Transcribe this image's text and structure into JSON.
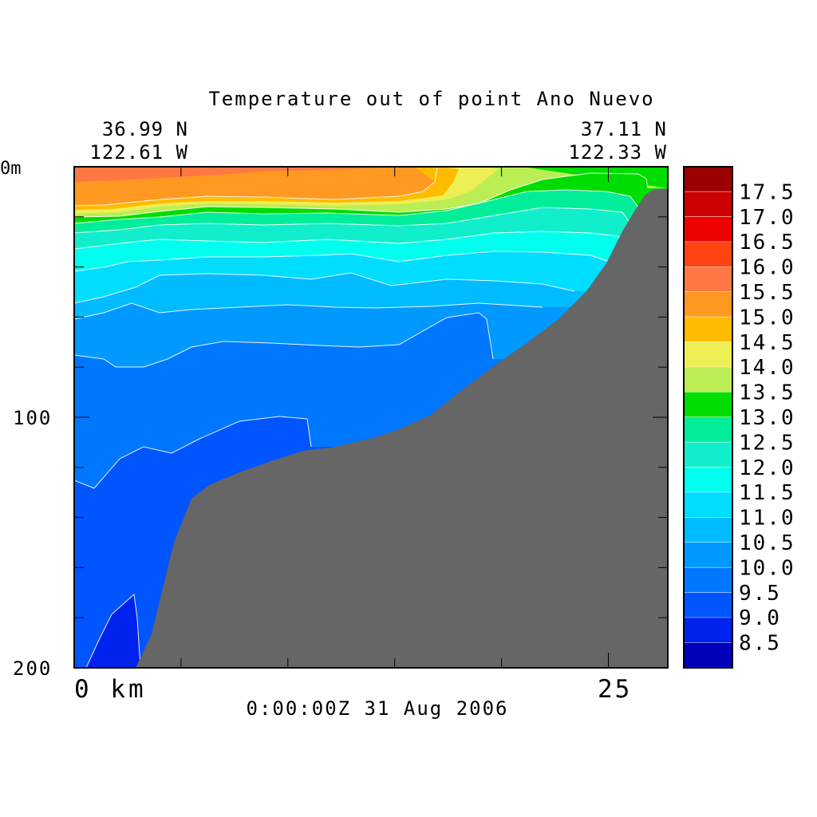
{
  "chart_data": {
    "type": "heatmap",
    "title": "Temperature out of point Ano Nuevo",
    "corner_left": {
      "lat": "36.99 N",
      "lon": "122.61 W"
    },
    "corner_right": {
      "lat": "37.11 N",
      "lon": "122.33 W"
    },
    "timestamp": "0:00:00Z  31 Aug 2006",
    "x_axis": {
      "range_km": [
        0,
        28
      ],
      "tick_labels": [
        {
          "value": 0,
          "text": "0 km"
        },
        {
          "value": 25,
          "text": "25"
        }
      ]
    },
    "y_axis": {
      "range_m": [
        0,
        200
      ],
      "reversed": true,
      "tick_labels": [
        {
          "value": 0,
          "text": "0m"
        },
        {
          "value": 100,
          "text": "100"
        },
        {
          "value": 200,
          "text": "200"
        }
      ]
    },
    "colorbar": {
      "levels": [
        {
          "value": 17.5,
          "color": "#990000",
          "label": "17.5"
        },
        {
          "value": 17.0,
          "color": "#cc0000",
          "label": "17.0"
        },
        {
          "value": 16.5,
          "color": "#ee0000",
          "label": "16.5"
        },
        {
          "value": 16.0,
          "color": "#ff4411",
          "label": "16.0"
        },
        {
          "value": 15.5,
          "color": "#ff7744",
          "label": "15.5"
        },
        {
          "value": 15.0,
          "color": "#ff9922",
          "label": "15.0"
        },
        {
          "value": 14.5,
          "color": "#ffbb00",
          "label": "14.5"
        },
        {
          "value": 14.0,
          "color": "#eeee55",
          "label": "14.0"
        },
        {
          "value": 13.5,
          "color": "#bbee55",
          "label": "13.5"
        },
        {
          "value": 13.0,
          "color": "#00dd00",
          "label": "13.0"
        },
        {
          "value": 12.5,
          "color": "#00ee99",
          "label": "12.5"
        },
        {
          "value": 12.0,
          "color": "#11eecc",
          "label": "12.0"
        },
        {
          "value": 11.5,
          "color": "#00ffee",
          "label": "11.5"
        },
        {
          "value": 11.0,
          "color": "#00ddff",
          "label": "11.0"
        },
        {
          "value": 10.5,
          "color": "#00bbff",
          "label": "10.5"
        },
        {
          "value": 10.0,
          "color": "#0099ff",
          "label": "10.0"
        },
        {
          "value": 9.5,
          "color": "#0077ff",
          "label": "9.5"
        },
        {
          "value": 9.0,
          "color": "#0055ff",
          "label": "9.0"
        },
        {
          "value": 8.5,
          "color": "#0022ee",
          "label": "8.5"
        },
        {
          "value": 8.0,
          "color": "#0000bb",
          "label": ""
        }
      ]
    },
    "colors": {
      "bathymetry": "#666666",
      "frame": "#000000"
    }
  }
}
